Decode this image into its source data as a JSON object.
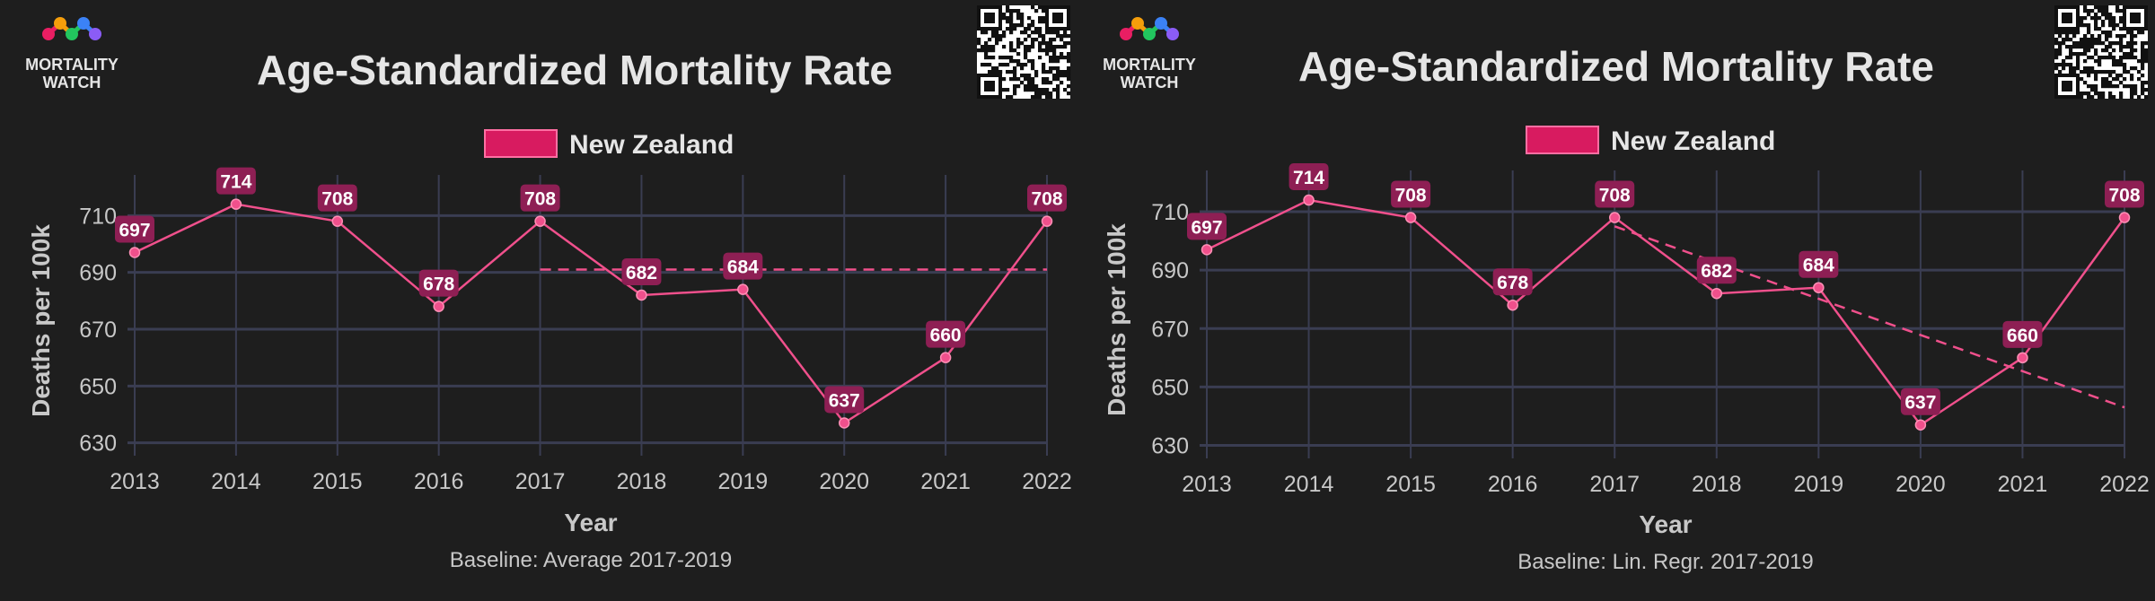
{
  "brand": {
    "logo_line1": "MORTALITY",
    "logo_line2": "WATCH",
    "logo_dot_colors": [
      "#e91e63",
      "#f59e0b",
      "#22c55e",
      "#3b82f6",
      "#8b5cf6"
    ]
  },
  "colors": {
    "background": "#1e1e1e",
    "grid": "#3a3d52",
    "axis_text": "#c8c8c8",
    "title_text": "#e6e6e6",
    "series": "#f0508c",
    "legend_fill": "#d81b60",
    "data_label_bg": "#8e1f54",
    "data_label_text": "#ffffff"
  },
  "chart_data": [
    {
      "type": "line",
      "title": "Age-Standardized Mortality Rate",
      "xlabel": "Year",
      "ylabel": "Deaths per 100k",
      "caption": "Baseline: Average 2017-2019",
      "categories": [
        "2013",
        "2014",
        "2015",
        "2016",
        "2017",
        "2018",
        "2019",
        "2020",
        "2021",
        "2022"
      ],
      "series": [
        {
          "name": "New Zealand",
          "values": [
            697,
            714,
            708,
            678,
            708,
            682,
            684,
            637,
            660,
            708
          ]
        }
      ],
      "baseline": {
        "type": "average",
        "from": "2017",
        "to": "2022",
        "values": [
          691,
          691
        ]
      },
      "ylim": [
        628,
        718
      ],
      "yticks": [
        630,
        650,
        670,
        690,
        710
      ],
      "grid": true,
      "legend_position": "top-center"
    },
    {
      "type": "line",
      "title": "Age-Standardized Mortality Rate",
      "xlabel": "Year",
      "ylabel": "Deaths per 100k",
      "caption": "Baseline: Lin. Regr. 2017-2019",
      "categories": [
        "2013",
        "2014",
        "2015",
        "2016",
        "2017",
        "2018",
        "2019",
        "2020",
        "2021",
        "2022"
      ],
      "series": [
        {
          "name": "New Zealand",
          "values": [
            697,
            714,
            708,
            678,
            708,
            682,
            684,
            637,
            660,
            708
          ]
        }
      ],
      "baseline": {
        "type": "linear-regression",
        "from": "2017",
        "to": "2022",
        "values": [
          705,
          643
        ]
      },
      "ylim": [
        628,
        718
      ],
      "yticks": [
        630,
        650,
        670,
        690,
        710
      ],
      "grid": true,
      "legend_position": "top-center"
    }
  ]
}
